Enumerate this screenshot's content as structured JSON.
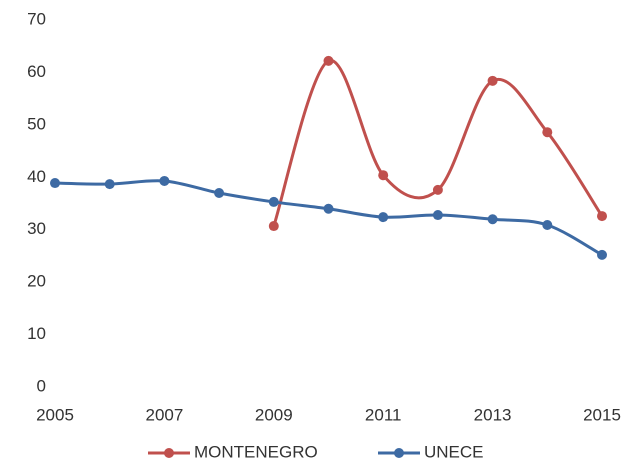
{
  "chart_data": {
    "type": "line",
    "smooth": true,
    "x": [
      2005,
      2006,
      2007,
      2008,
      2009,
      2010,
      2011,
      2012,
      2013,
      2014,
      2015
    ],
    "series": [
      {
        "name": "MONTENEGRO",
        "color": "#c0504d",
        "values": [
          null,
          null,
          null,
          null,
          30.7,
          62.2,
          40.4,
          37.6,
          58.4,
          48.6,
          32.6
        ]
      },
      {
        "name": "UNECE",
        "color": "#3d6aa3",
        "values": [
          38.9,
          38.7,
          39.3,
          37,
          35.3,
          34,
          32.4,
          32.8,
          32,
          30.9,
          25.2
        ]
      }
    ],
    "xlim": [
      2005,
      2015
    ],
    "xticks": [
      2005,
      2007,
      2009,
      2011,
      2013,
      2015
    ],
    "ylim": [
      0,
      70
    ],
    "yticks": [
      0,
      10,
      20,
      30,
      40,
      50,
      60,
      70
    ],
    "grid": false,
    "legend": "bottom"
  }
}
